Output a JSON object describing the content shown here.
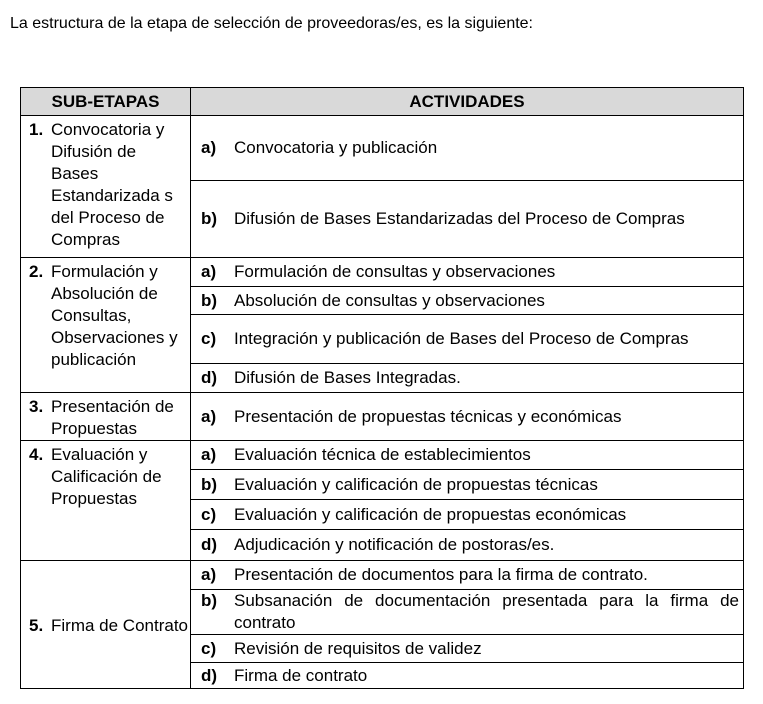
{
  "intro": "La estructura de la etapa de selección de proveedoras/es, es la siguiente:",
  "table": {
    "headers": [
      "SUB-ETAPAS",
      "ACTIVIDADES"
    ],
    "header_bg": "#d9d9d9",
    "stages": [
      {
        "num": "1.",
        "name": "Convocatoria y Difusión de Bases Estandarizada s del Proceso de Compras",
        "activities": [
          {
            "letter": "a)",
            "text": "Convocatoria y publicación"
          },
          {
            "letter": "b)",
            "text": "Difusión de Bases Estandarizadas del Proceso de Compras"
          }
        ]
      },
      {
        "num": "2.",
        "name": "Formulación y Absolución de Consultas, Observaciones y publicación",
        "activities": [
          {
            "letter": "a)",
            "text": "Formulación de consultas y observaciones"
          },
          {
            "letter": "b)",
            "text": "Absolución de consultas y observaciones"
          },
          {
            "letter": "c)",
            "text": "Integración y publicación de Bases del Proceso de Compras"
          },
          {
            "letter": "d)",
            "text": "Difusión de Bases Integradas."
          }
        ]
      },
      {
        "num": "3.",
        "name": "Presentación de Propuestas",
        "activities": [
          {
            "letter": "a)",
            "text": "Presentación de propuestas técnicas y económicas"
          }
        ]
      },
      {
        "num": "4.",
        "name": "Evaluación y Calificación de Propuestas",
        "activities": [
          {
            "letter": "a)",
            "text": "Evaluación técnica de establecimientos"
          },
          {
            "letter": "b)",
            "text": "Evaluación y calificación de propuestas técnicas"
          },
          {
            "letter": "c)",
            "text": "Evaluación y calificación de propuestas económicas"
          },
          {
            "letter": "d)",
            "text": "Adjudicación y notificación de postoras/es."
          }
        ]
      },
      {
        "num": "5.",
        "name": "Firma de Contrato",
        "activities": [
          {
            "letter": "a)",
            "text": "Presentación de documentos para la firma de contrato."
          },
          {
            "letter": "b)",
            "text": "Subsanación de documentación presentada para la firma de contrato"
          },
          {
            "letter": "c)",
            "text": "Revisión de requisitos de validez"
          },
          {
            "letter": "d)",
            "text": "Firma de contrato"
          }
        ]
      }
    ]
  }
}
